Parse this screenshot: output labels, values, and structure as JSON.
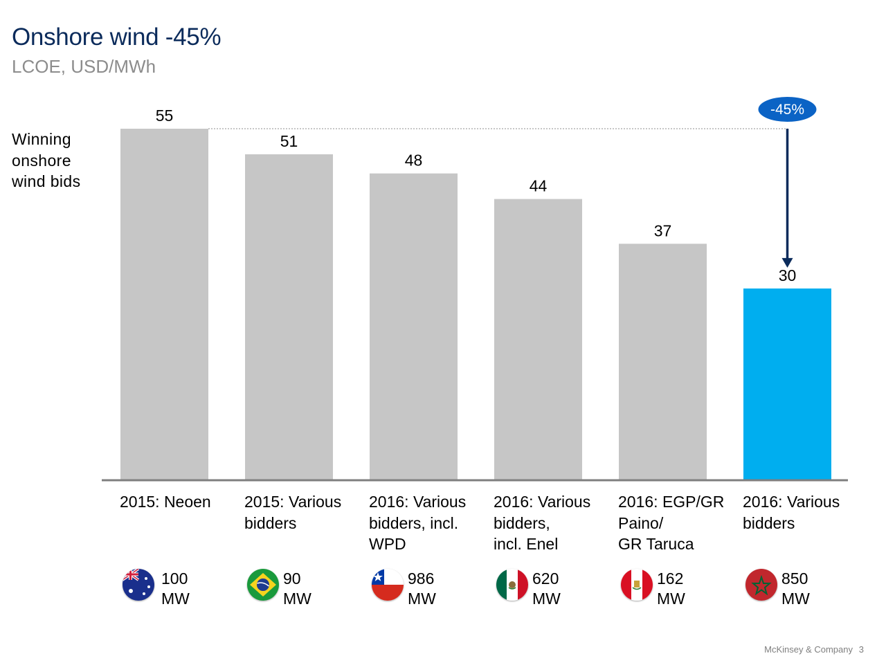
{
  "header": {
    "title": "Onshore wind -45%",
    "subtitle": "LCOE, USD/MWh"
  },
  "side_label": {
    "line1": "Winning",
    "line2": "onshore",
    "line3": "wind bids"
  },
  "chart_data": {
    "type": "bar",
    "title": "Onshore wind -45%",
    "subtitle": "LCOE, USD/MWh",
    "ylabel": "",
    "xlabel": "",
    "ylim": [
      0,
      55
    ],
    "grid": false,
    "categories": [
      "2015: Neoen",
      "2015: Various bidders",
      "2016: Various bidders, incl. WPD",
      "2016: Various bidders, incl. Enel",
      "2016: EGP/GR Paino/ GR Taruca",
      "2016: Various bidders"
    ],
    "values": [
      55,
      51,
      48,
      44,
      37,
      30
    ],
    "highlight_index": 5,
    "annotation": {
      "text": "-45%",
      "from_index": 0,
      "to_index": 5
    },
    "colors": {
      "bar": "#c6c6c6",
      "highlight": "#00aeef",
      "arrow": "#0b2b5b",
      "badge": "#0b63c5",
      "axis": "#7f7f7f"
    }
  },
  "categories": [
    {
      "line1": "2015: Neoen",
      "line2": "",
      "line3": "",
      "capacity_value": "100",
      "capacity_unit": "MW",
      "flag": "australia-flag-icon"
    },
    {
      "line1": "2015: Various",
      "line2": "bidders",
      "line3": "",
      "capacity_value": "90",
      "capacity_unit": "MW",
      "flag": "brazil-flag-icon"
    },
    {
      "line1": "2016: Various",
      "line2": "bidders, incl.",
      "line3": "WPD",
      "capacity_value": "986",
      "capacity_unit": "MW",
      "flag": "chile-flag-icon"
    },
    {
      "line1": "2016: Various",
      "line2": "bidders,",
      "line3": "incl. Enel",
      "capacity_value": "620",
      "capacity_unit": "MW",
      "flag": "mexico-flag-icon"
    },
    {
      "line1": "2016: EGP/GR",
      "line2": "Paino/",
      "line3": "GR Taruca",
      "capacity_value": "162",
      "capacity_unit": "MW",
      "flag": "peru-flag-icon"
    },
    {
      "line1": "2016: Various",
      "line2": "bidders",
      "line3": "",
      "capacity_value": "850",
      "capacity_unit": "MW",
      "flag": "morocco-flag-icon"
    }
  ],
  "footer": {
    "company": "McKinsey & Company",
    "page": "3"
  }
}
